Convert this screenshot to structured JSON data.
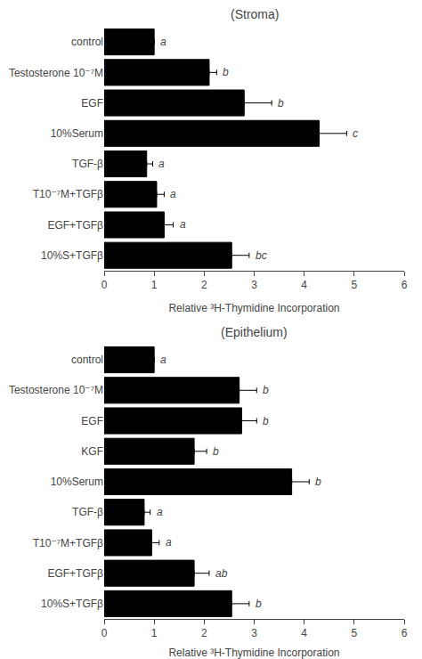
{
  "chart_data": [
    {
      "type": "bar",
      "orientation": "horizontal",
      "title": "(Stroma)",
      "categories": [
        "control",
        "Testosterone 10⁻⁷M",
        "EGF",
        "10%Serum",
        "TGF-β",
        "T10⁻⁷M+TGFβ",
        "EGF+TGFβ",
        "10%S+TGFβ"
      ],
      "values": [
        1.0,
        2.1,
        2.8,
        4.3,
        0.85,
        1.05,
        1.2,
        2.55
      ],
      "errors": [
        0.0,
        0.15,
        0.55,
        0.55,
        0.12,
        0.15,
        0.18,
        0.35
      ],
      "annotations": [
        "a",
        "b",
        "b",
        "c",
        "a",
        "a",
        "a",
        "bc"
      ],
      "xlabel": "Relative ³H-Thymidine Incorporation",
      "xlim": [
        0,
        6
      ],
      "xticks": [
        0,
        1,
        2,
        3,
        4,
        5,
        6
      ],
      "color": "#000000",
      "grid": false
    },
    {
      "type": "bar",
      "orientation": "horizontal",
      "title": "(Epithelium)",
      "categories": [
        "control",
        "Testosterone 10⁻⁷M",
        "EGF",
        "KGF",
        "10%Serum",
        "TGF-β",
        "T10⁻⁷M+TGFβ",
        "EGF+TGFβ",
        "10%S+TGFβ"
      ],
      "values": [
        1.0,
        2.7,
        2.75,
        1.8,
        3.75,
        0.8,
        0.95,
        1.8,
        2.55
      ],
      "errors": [
        0.0,
        0.35,
        0.3,
        0.25,
        0.35,
        0.12,
        0.15,
        0.3,
        0.35
      ],
      "annotations": [
        "a",
        "b",
        "b",
        "b",
        "b",
        "a",
        "a",
        "ab",
        "b"
      ],
      "xlabel": "Relative ³H-Thymidine Incorporation",
      "xlim": [
        0,
        6
      ],
      "xticks": [
        0,
        1,
        2,
        3,
        4,
        5,
        6
      ],
      "color": "#000000",
      "grid": false
    }
  ]
}
